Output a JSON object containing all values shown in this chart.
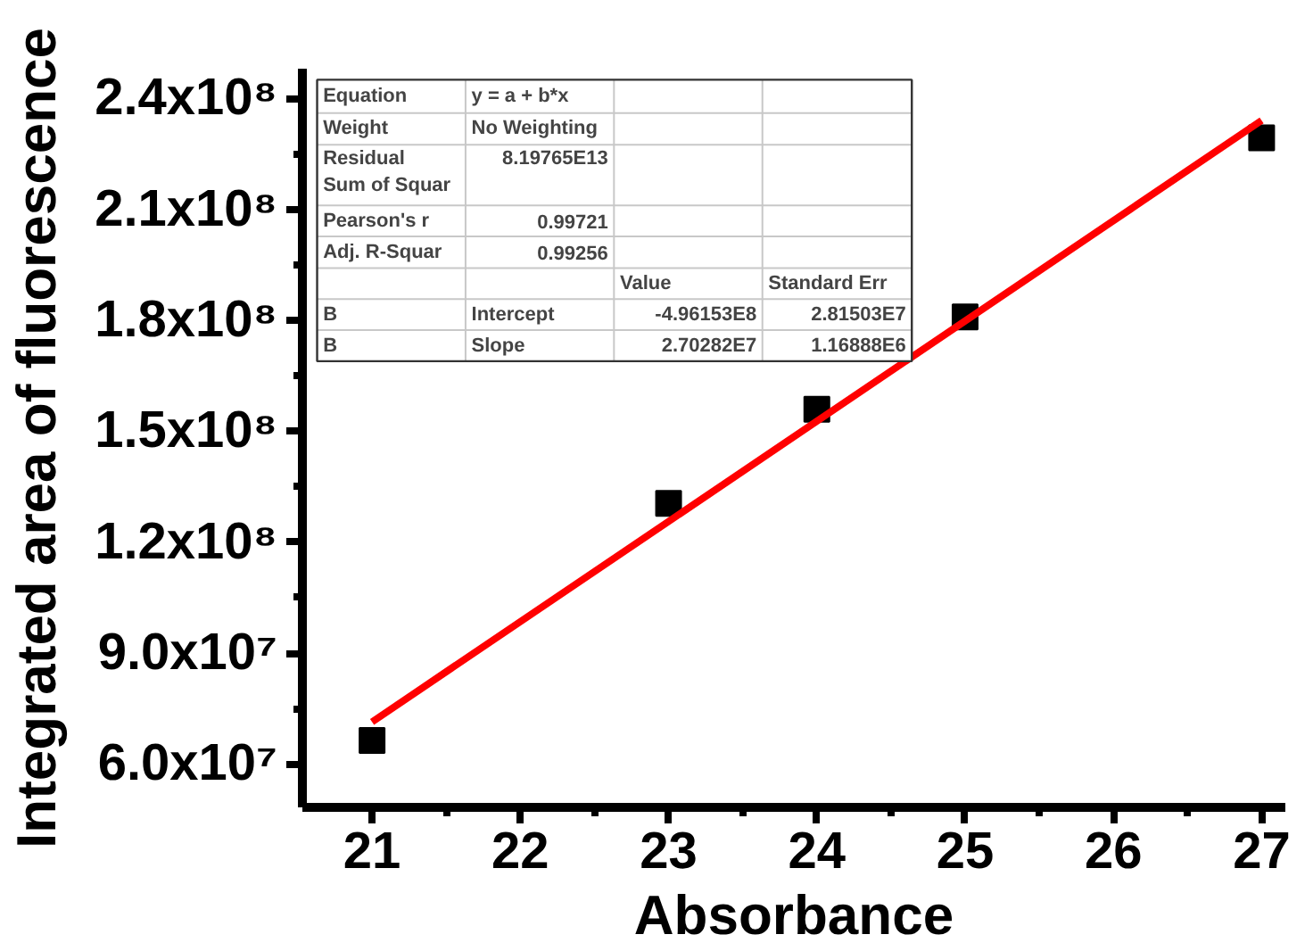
{
  "chart_data": {
    "type": "scatter",
    "xlabel": "Absorbance",
    "ylabel": "Integrated area of fluorescence",
    "x": [
      21,
      23,
      24,
      25,
      27
    ],
    "series": [
      {
        "color": "#000000",
        "values": [
          66400000.0,
          130500000.0,
          155900000.0,
          180900000.0,
          229300000.0
        ],
        "marker": "square"
      },
      {
        "type": "line",
        "color": "#ff0000",
        "x": [
          21,
          27
        ],
        "values": [
          71400000.0,
          234000000.0
        ],
        "line_style": "solid"
      }
    ],
    "xlim": [
      20.53,
      27.16
    ],
    "ylim": [
      48300000.0,
      248000000.0
    ],
    "xticks": [
      21,
      {
        "value": 21.5,
        "label": null
      },
      22,
      {
        "value": 22.5,
        "label": null
      },
      23,
      {
        "value": 23.5,
        "label": null
      },
      24,
      {
        "value": 24.5,
        "label": null
      },
      25,
      {
        "value": 25.5,
        "label": null
      },
      26,
      {
        "value": 26.5,
        "label": null
      },
      27
    ],
    "yticks": [
      {
        "value": 60000000.0,
        "label": "6.0x10⁷"
      },
      {
        "value": 75000000.0,
        "label": null
      },
      {
        "value": 90000000.0,
        "label": "9.0x10⁷"
      },
      {
        "value": 105000000.0,
        "label": null
      },
      {
        "value": 120000000.0,
        "label": "1.2x10⁸"
      },
      {
        "value": 135000000.0,
        "label": null
      },
      {
        "value": 150000000.0,
        "label": "1.5x10⁸"
      },
      {
        "value": 165000000.0,
        "label": null
      },
      {
        "value": 180000000.0,
        "label": "1.8x10⁸"
      },
      {
        "value": 195000000.0,
        "label": null
      },
      {
        "value": 210000000.0,
        "label": "2.1x10⁸"
      },
      {
        "value": 225000000.0,
        "label": null
      },
      {
        "value": 240000000.0,
        "label": "2.4x10⁸"
      }
    ],
    "grid": false,
    "annotations": [
      "Equation",
      "y = a + b*x",
      "Weight",
      "No Weighting",
      "Residual Sum of Squar",
      "8.19765E13",
      "Pearson's r",
      "0.99721",
      "Adj. R-Squar",
      "0.99256",
      "Value",
      "Standard Err",
      "B",
      "Intercept",
      "-4.96153E8",
      "2.81503E7",
      "B",
      "Slope",
      "2.70282E7",
      "1.16888E6"
    ]
  }
}
